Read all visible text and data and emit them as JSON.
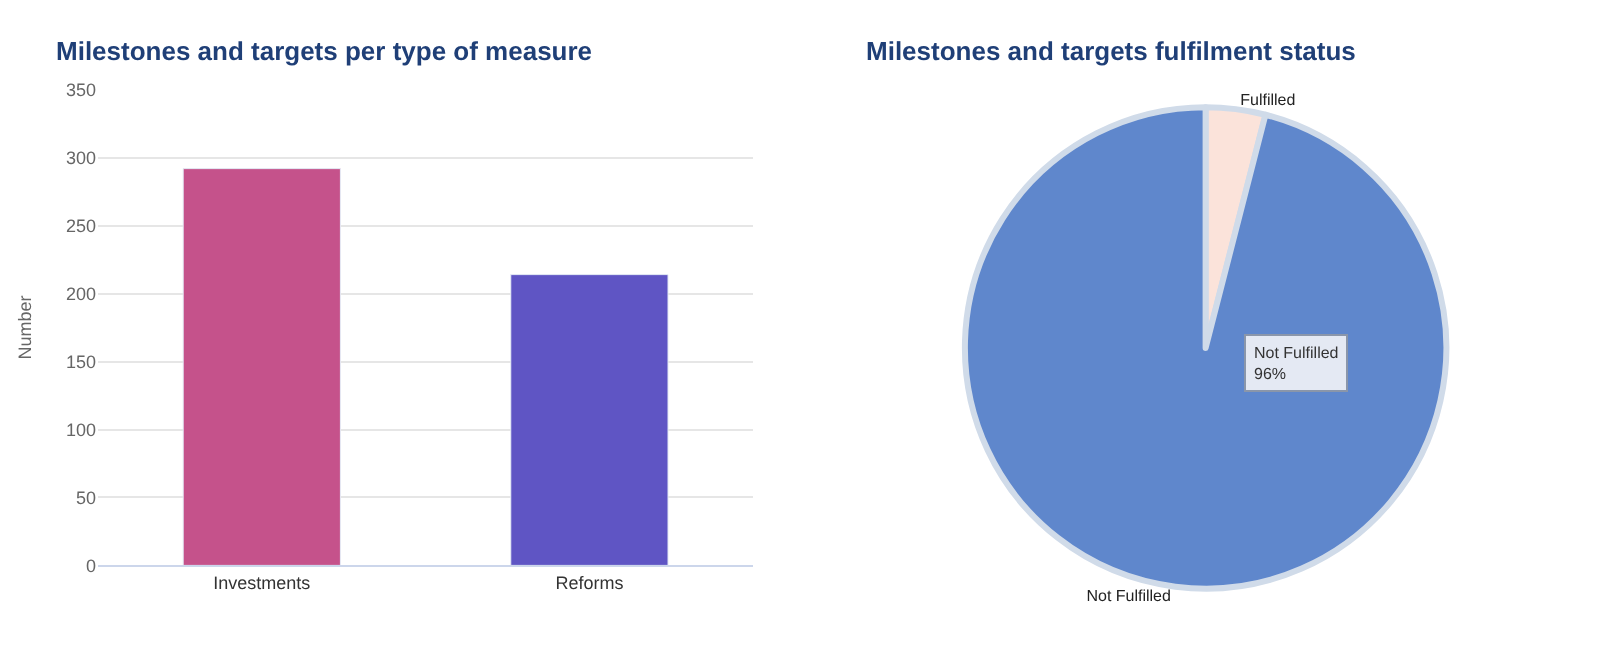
{
  "chart_data": [
    {
      "type": "bar",
      "title": "Milestones and targets per type of measure",
      "ylabel": "Number",
      "categories": [
        "Investments",
        "Reforms"
      ],
      "values": [
        292,
        214
      ],
      "colors": [
        "#c5528b",
        "#5f55c4"
      ],
      "ylim": [
        0,
        350
      ],
      "yticks": [
        0,
        50,
        100,
        150,
        200,
        250,
        300,
        350
      ],
      "grid": "y"
    },
    {
      "type": "pie",
      "title": "Milestones and targets fulfilment status",
      "categories": [
        "Fulfilled",
        "Not Fulfilled"
      ],
      "values": [
        4,
        96
      ],
      "colors": [
        "#fbe3da",
        "#5f87cc"
      ],
      "annotations": [
        "Not Fulfilled\n96%"
      ]
    }
  ]
}
